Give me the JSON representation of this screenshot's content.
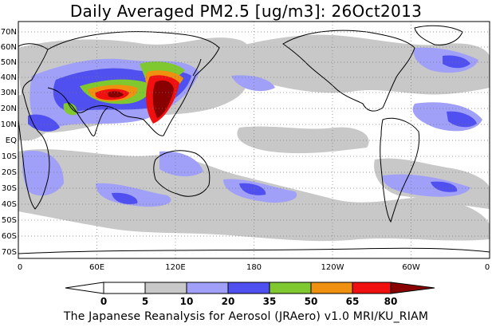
{
  "title": "Daily Averaged PM2.5 [ug/m3]: 26Oct2013",
  "credit": "The Japanese Reanalysis for Aerosol (JRAero) v1.0 MRI/KU_RIAM",
  "map": {
    "lat_labels": [
      "70N",
      "60N",
      "50N",
      "40N",
      "30N",
      "20N",
      "10N",
      "EQ",
      "10S",
      "20S",
      "30S",
      "40S",
      "50S",
      "60S",
      "70S"
    ],
    "lon_labels": [
      "0",
      "60E",
      "120E",
      "180",
      "120W",
      "60W",
      "0"
    ]
  },
  "legend": {
    "tick_labels": [
      "0",
      "5",
      "10",
      "20",
      "35",
      "50",
      "65",
      "80"
    ],
    "colors": [
      "#ffffff",
      "#c8c8c8",
      "#a0a0f8",
      "#5050f0",
      "#80c830",
      "#f09010",
      "#f01010",
      "#880000"
    ],
    "unit": "ug/m3"
  }
}
